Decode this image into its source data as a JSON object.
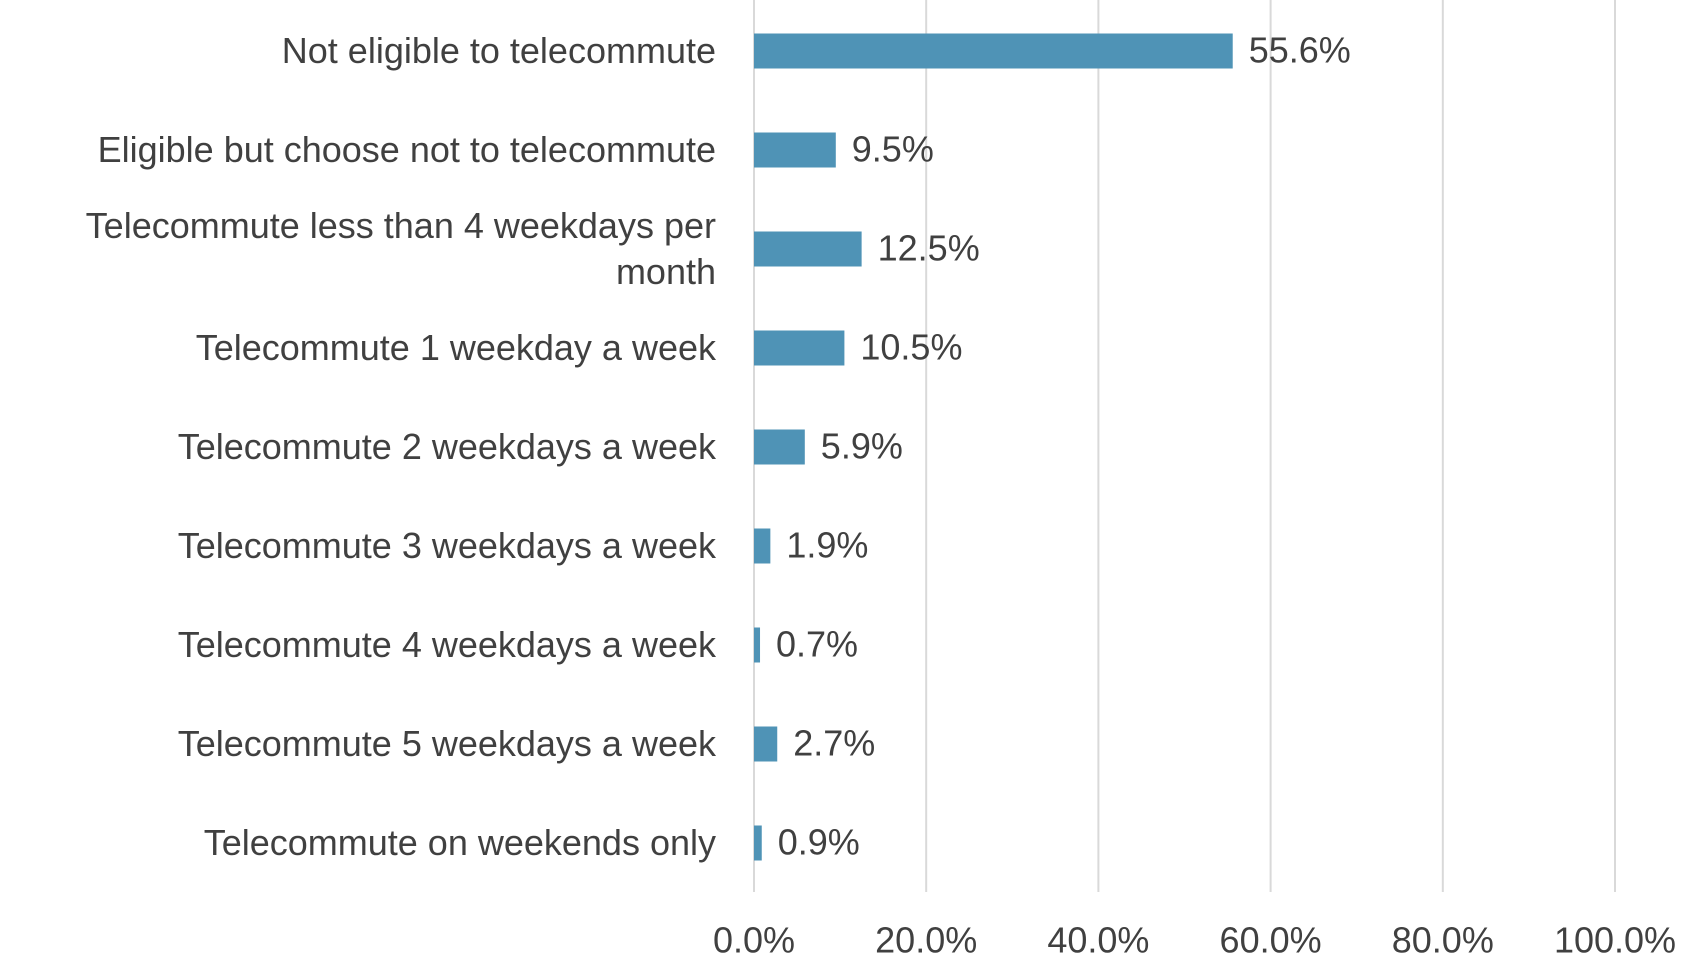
{
  "chart_data": {
    "type": "hbar",
    "categories": [
      "Not eligible to telecommute",
      "Eligible but choose not to telecommute",
      "Telecommute less than 4 weekdays per month",
      "Telecommute 1 weekday a week",
      "Telecommute 2 weekdays a week",
      "Telecommute 3 weekdays a week",
      "Telecommute 4 weekdays a week",
      "Telecommute 5 weekdays a week",
      "Telecommute on weekends only"
    ],
    "values": [
      55.6,
      9.5,
      12.5,
      10.5,
      5.9,
      1.9,
      0.7,
      2.7,
      0.9
    ],
    "value_labels": [
      "55.6%",
      "9.5%",
      "12.5%",
      "10.5%",
      "5.9%",
      "1.9%",
      "0.7%",
      "2.7%",
      "0.9%"
    ],
    "color": "#4f93b6",
    "xlim": [
      0,
      100
    ],
    "xticks": [
      {
        "value": 0,
        "label": "0.0%"
      },
      {
        "value": 20,
        "label": "20.0%"
      },
      {
        "value": 40,
        "label": "40.0%"
      },
      {
        "value": 60,
        "label": "60.0%"
      },
      {
        "value": 80,
        "label": "80.0%"
      },
      {
        "value": 100,
        "label": "100.0%"
      }
    ],
    "grid": true
  }
}
